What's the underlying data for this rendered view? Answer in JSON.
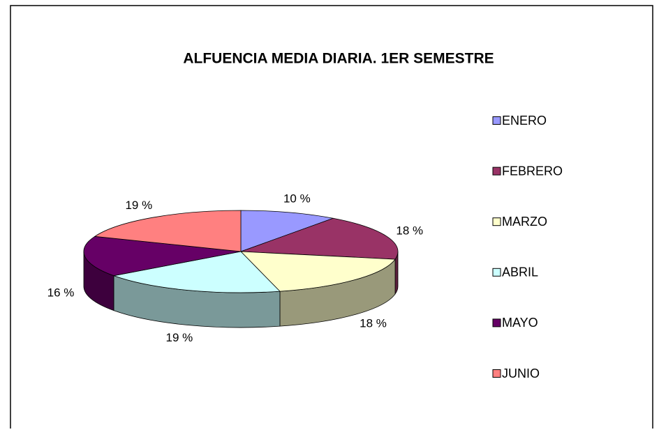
{
  "chart_data": {
    "type": "pie3d",
    "title": "ALFUENCIA MEDIA DIARIA. 1ER SEMESTRE",
    "categories": [
      "ENERO",
      "FEBRERO",
      "MARZO",
      "ABRIL",
      "MAYO",
      "JUNIO"
    ],
    "values": [
      10,
      18,
      18,
      19,
      16,
      19
    ],
    "value_labels": [
      "10 %",
      "18 %",
      "18 %",
      "19 %",
      "16 %",
      "19 %"
    ],
    "colors": [
      "#9999ff",
      "#993366",
      "#ffffcc",
      "#ccffff",
      "#660066",
      "#ff8080"
    ],
    "legend": "right"
  }
}
